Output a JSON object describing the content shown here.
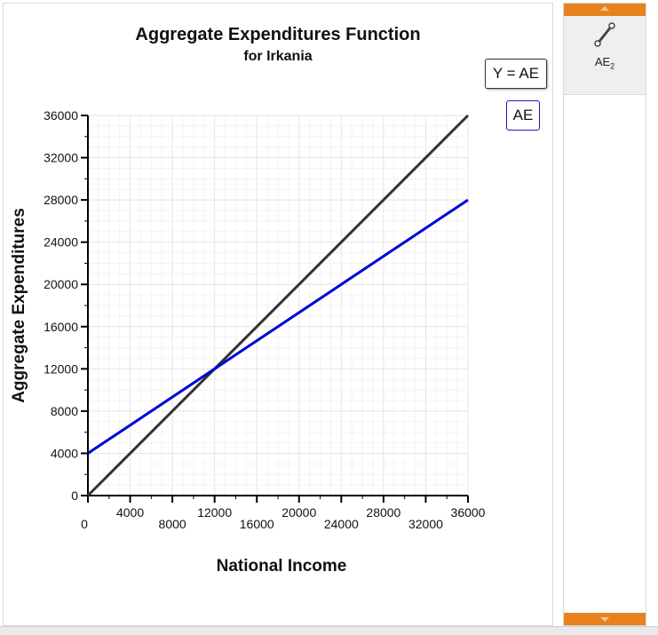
{
  "chart_data": {
    "type": "line",
    "title": "Aggregate Expenditures Function",
    "subtitle": "for Irkania",
    "xlabel": "National Income",
    "ylabel": "Aggregate Expenditures",
    "xlim": [
      0,
      36000
    ],
    "ylim": [
      0,
      36000
    ],
    "grid": true,
    "x_ticks": [
      "0",
      "4000",
      "8000",
      "12000",
      "16000",
      "20000",
      "24000",
      "28000",
      "32000",
      "36000"
    ],
    "y_ticks": [
      "0",
      "4000",
      "8000",
      "12000",
      "16000",
      "20000",
      "24000",
      "28000",
      "32000",
      "36000"
    ],
    "series": [
      {
        "name": "Y = AE",
        "color": "#333333",
        "x": [
          0,
          36000
        ],
        "y": [
          0,
          36000
        ]
      },
      {
        "name": "AE",
        "color": "#0000dd",
        "x": [
          0,
          36000
        ],
        "y": [
          4000,
          28000
        ]
      }
    ]
  },
  "legend": {
    "yae_label": "Y = AE",
    "ae_label": "AE"
  },
  "tools": [
    {
      "icon": "line-tool-icon",
      "label": "AE",
      "subscript": "2"
    }
  ],
  "colors": {
    "accent": "#e8821e",
    "ae_line": "#0000dd",
    "identity_line": "#333333"
  }
}
